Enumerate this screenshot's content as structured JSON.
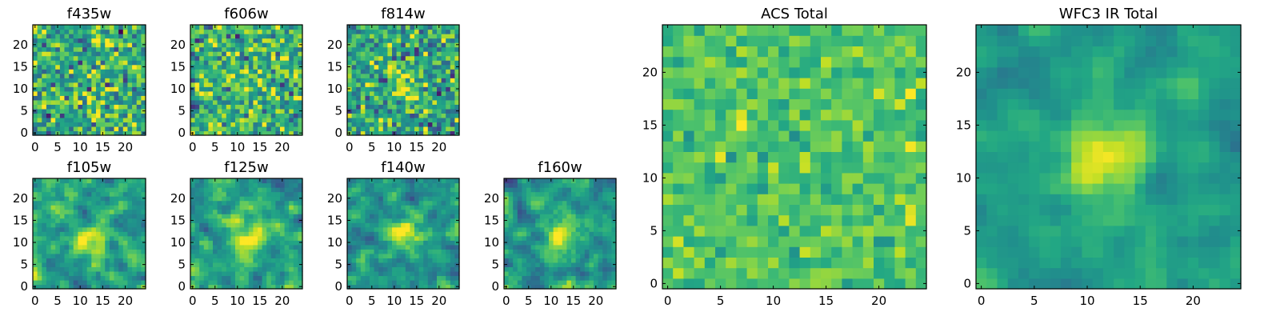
{
  "chart_data": [
    {
      "type": "heatmap",
      "title": "f435w",
      "colormap": "viridis",
      "size": 25,
      "xticks": [
        0,
        5,
        10,
        15,
        20
      ],
      "yticks": [
        0,
        5,
        10,
        15,
        20
      ],
      "xlim": [
        0,
        25
      ],
      "ylim": [
        0,
        25
      ],
      "texture": {
        "seed": 11,
        "noise": 0.95,
        "blob": 0.0,
        "cx": 12,
        "cy": 12,
        "sigma": 3,
        "smooth": 0,
        "base": 0.62,
        "contrast": 0.2
      }
    },
    {
      "type": "heatmap",
      "title": "f606w",
      "colormap": "viridis",
      "size": 25,
      "xticks": [
        0,
        5,
        10,
        15,
        20
      ],
      "yticks": [
        0,
        5,
        10,
        15,
        20
      ],
      "xlim": [
        0,
        25
      ],
      "ylim": [
        0,
        25
      ],
      "texture": {
        "seed": 23,
        "noise": 0.95,
        "blob": 0.0,
        "cx": 12,
        "cy": 12,
        "sigma": 3,
        "smooth": 0,
        "base": 0.64,
        "contrast": 0.2
      }
    },
    {
      "type": "heatmap",
      "title": "f814w",
      "colormap": "viridis",
      "size": 25,
      "xticks": [
        0,
        5,
        10,
        15,
        20
      ],
      "yticks": [
        0,
        5,
        10,
        15,
        20
      ],
      "xlim": [
        0,
        25
      ],
      "ylim": [
        0,
        25
      ],
      "texture": {
        "seed": 37,
        "noise": 0.95,
        "blob": 0.25,
        "cx": 12,
        "cy": 11,
        "sigma": 2.5,
        "smooth": 0,
        "base": 0.6,
        "contrast": 0.2
      }
    },
    {
      "type": "heatmap",
      "title": "f105w",
      "colormap": "viridis",
      "size": 25,
      "xticks": [
        0,
        5,
        10,
        15,
        20
      ],
      "yticks": [
        0,
        5,
        10,
        15,
        20
      ],
      "xlim": [
        0,
        25
      ],
      "ylim": [
        0,
        25
      ],
      "texture": {
        "seed": 41,
        "noise": 0.85,
        "blob": 0.35,
        "cx": 12,
        "cy": 10,
        "sigma": 3,
        "smooth": 1,
        "base": 0.58,
        "contrast": 0.22
      }
    },
    {
      "type": "heatmap",
      "title": "f125w",
      "colormap": "viridis",
      "size": 25,
      "xticks": [
        0,
        5,
        10,
        15,
        20
      ],
      "yticks": [
        0,
        5,
        10,
        15,
        20
      ],
      "xlim": [
        0,
        25
      ],
      "ylim": [
        0,
        25
      ],
      "texture": {
        "seed": 53,
        "noise": 0.8,
        "blob": 0.5,
        "cx": 13,
        "cy": 10,
        "sigma": 3,
        "smooth": 1,
        "base": 0.55,
        "contrast": 0.22
      }
    },
    {
      "type": "heatmap",
      "title": "f140w",
      "colormap": "viridis",
      "size": 25,
      "xticks": [
        0,
        5,
        10,
        15,
        20
      ],
      "yticks": [
        0,
        5,
        10,
        15,
        20
      ],
      "xlim": [
        0,
        25
      ],
      "ylim": [
        0,
        25
      ],
      "texture": {
        "seed": 67,
        "noise": 0.8,
        "blob": 0.5,
        "cx": 12,
        "cy": 12,
        "sigma": 2.5,
        "smooth": 1,
        "base": 0.52,
        "contrast": 0.22
      }
    },
    {
      "type": "heatmap",
      "title": "f160w",
      "colormap": "viridis",
      "size": 25,
      "xticks": [
        0,
        5,
        10,
        15,
        20
      ],
      "yticks": [
        0,
        5,
        10,
        15,
        20
      ],
      "xlim": [
        0,
        25
      ],
      "ylim": [
        0,
        25
      ],
      "texture": {
        "seed": 79,
        "noise": 0.8,
        "blob": 0.55,
        "cx": 12,
        "cy": 12,
        "sigma": 2.5,
        "smooth": 1,
        "base": 0.52,
        "contrast": 0.22
      }
    },
    {
      "type": "heatmap",
      "title": "ACS Total",
      "colormap": "viridis",
      "size": 25,
      "xticks": [
        0,
        5,
        10,
        15,
        20
      ],
      "yticks": [
        0,
        5,
        10,
        15,
        20
      ],
      "xlim": [
        0,
        25
      ],
      "ylim": [
        0,
        25
      ],
      "texture": {
        "seed": 97,
        "noise": 0.7,
        "blob": 0.0,
        "cx": 12,
        "cy": 12,
        "sigma": 3,
        "smooth": 0,
        "base": 0.72,
        "contrast": 0.13
      }
    },
    {
      "type": "heatmap",
      "title": "WFC3 IR Total",
      "colormap": "viridis",
      "size": 25,
      "xticks": [
        0,
        5,
        10,
        15,
        20
      ],
      "yticks": [
        0,
        5,
        10,
        15,
        20
      ],
      "xlim": [
        0,
        25
      ],
      "ylim": [
        0,
        25
      ],
      "texture": {
        "seed": 131,
        "noise": 0.55,
        "blob": 0.45,
        "cx": 12,
        "cy": 12,
        "sigma": 2.6,
        "smooth": 1,
        "base": 0.56,
        "contrast": 0.16
      }
    }
  ]
}
